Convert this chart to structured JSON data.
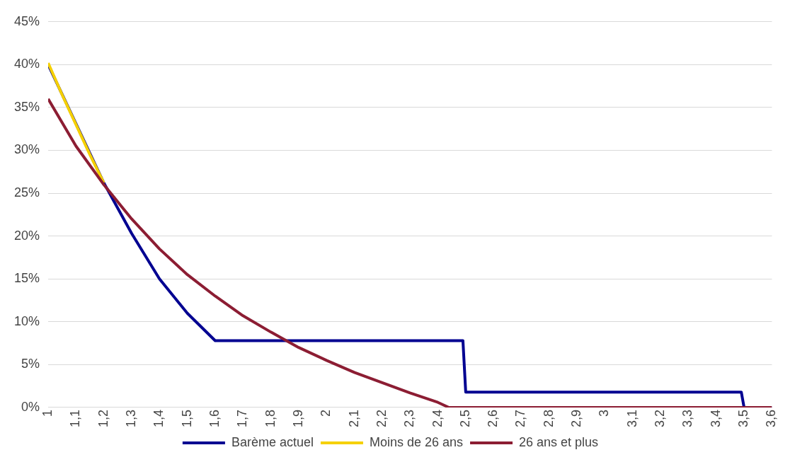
{
  "chart_data": {
    "type": "line",
    "xlim": [
      1,
      3.6
    ],
    "xticks": [
      {
        "value": 1,
        "label": "1"
      },
      {
        "value": 1.1,
        "label": "1,1"
      },
      {
        "value": 1.2,
        "label": "1,2"
      },
      {
        "value": 1.3,
        "label": "1,3"
      },
      {
        "value": 1.4,
        "label": "1,4"
      },
      {
        "value": 1.5,
        "label": "1,5"
      },
      {
        "value": 1.6,
        "label": "1,6"
      },
      {
        "value": 1.7,
        "label": "1,7"
      },
      {
        "value": 1.8,
        "label": "1,8"
      },
      {
        "value": 1.9,
        "label": "1,9"
      },
      {
        "value": 2,
        "label": "2"
      },
      {
        "value": 2.1,
        "label": "2,1"
      },
      {
        "value": 2.2,
        "label": "2,2"
      },
      {
        "value": 2.3,
        "label": "2,3"
      },
      {
        "value": 2.4,
        "label": "2,4"
      },
      {
        "value": 2.5,
        "label": "2,5"
      },
      {
        "value": 2.6,
        "label": "2,6"
      },
      {
        "value": 2.7,
        "label": "2,7"
      },
      {
        "value": 2.8,
        "label": "2,8"
      },
      {
        "value": 2.9,
        "label": "2,9"
      },
      {
        "value": 3,
        "label": "3"
      },
      {
        "value": 3.1,
        "label": "3,1"
      },
      {
        "value": 3.2,
        "label": "3,2"
      },
      {
        "value": 3.3,
        "label": "3,3"
      },
      {
        "value": 3.4,
        "label": "3,4"
      },
      {
        "value": 3.5,
        "label": "3,5"
      },
      {
        "value": 3.6,
        "label": "3,6"
      }
    ],
    "ylim": [
      0,
      45
    ],
    "yticks": [
      {
        "value": 0,
        "label": "0%"
      },
      {
        "value": 5,
        "label": "5%"
      },
      {
        "value": 10,
        "label": "10%"
      },
      {
        "value": 15,
        "label": "15%"
      },
      {
        "value": 20,
        "label": "20%"
      },
      {
        "value": 25,
        "label": "25%"
      },
      {
        "value": 30,
        "label": "30%"
      },
      {
        "value": 35,
        "label": "35%"
      },
      {
        "value": 40,
        "label": "40%"
      },
      {
        "value": 45,
        "label": "45%"
      }
    ],
    "grid": "y",
    "legend": "bottom",
    "marker": "none",
    "line_style": "solid",
    "series": [
      {
        "name": "Barème actuel",
        "color": "#000091",
        "x": [
          1,
          1.1,
          1.2,
          1.3,
          1.4,
          1.5,
          1.6,
          2.49,
          2.5,
          3.49,
          3.5,
          3.6
        ],
        "values": [
          40,
          null,
          26.2,
          20.3,
          15,
          11,
          7.8,
          7.8,
          1.8,
          1.8,
          0,
          0
        ]
      },
      {
        "name": "Moins de 26 ans",
        "color": "#f5d000",
        "x": [
          1,
          1.05,
          1.1,
          1.15,
          1.2
        ],
        "values": [
          40.2,
          36.5,
          33,
          29.5,
          26.2
        ]
      },
      {
        "name": "26 ans et plus",
        "color": "#8c1d33",
        "x": [
          1,
          1.1,
          1.2,
          1.3,
          1.4,
          1.5,
          1.6,
          1.7,
          1.8,
          1.9,
          2,
          2.1,
          2.2,
          2.3,
          2.4,
          2.44,
          3.6
        ],
        "values": [
          36,
          30.5,
          26,
          22,
          18.5,
          15.5,
          13,
          10.7,
          8.8,
          7,
          5.5,
          4.1,
          2.9,
          1.7,
          0.6,
          0,
          0
        ]
      }
    ]
  }
}
